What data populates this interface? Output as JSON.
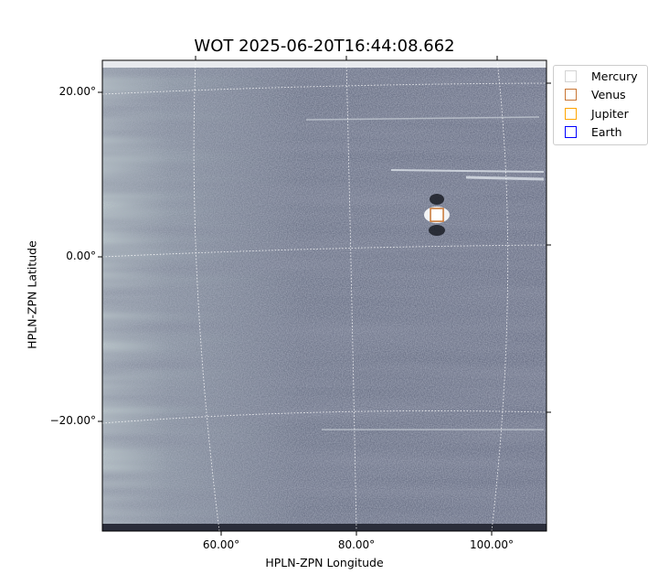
{
  "chart_data": {
    "type": "image",
    "title": "WOT 2025-06-20T16:44:08.662",
    "xlabel": "HPLN-ZPN Longitude",
    "ylabel": "HPLN-ZPN Latitude",
    "xticks": [
      {
        "value": 60,
        "label": "60.00°"
      },
      {
        "value": 80,
        "label": "80.00°"
      },
      {
        "value": 100,
        "label": "100.00°"
      }
    ],
    "yticks": [
      {
        "value": 20,
        "label": "20.00°"
      },
      {
        "value": 0,
        "label": "0.00°"
      },
      {
        "value": -20,
        "label": "−20.00°"
      }
    ],
    "xlim": [
      42.7,
      108.3
    ],
    "ylim": [
      -32.8,
      23.9
    ],
    "colormap": "gray-blue",
    "grid": true,
    "legend": {
      "placement": "outside-top-right",
      "entries": [
        {
          "name": "Mercury",
          "color": "#d3d3d3"
        },
        {
          "name": "Venus",
          "color": "#c87533"
        },
        {
          "name": "Jupiter",
          "color": "#ffa500"
        },
        {
          "name": "Earth",
          "color": "#0000ff"
        }
      ]
    },
    "markers": [
      {
        "name": "Venus",
        "lon": 91.9,
        "lat": 5.1,
        "color": "#c87533"
      }
    ]
  }
}
